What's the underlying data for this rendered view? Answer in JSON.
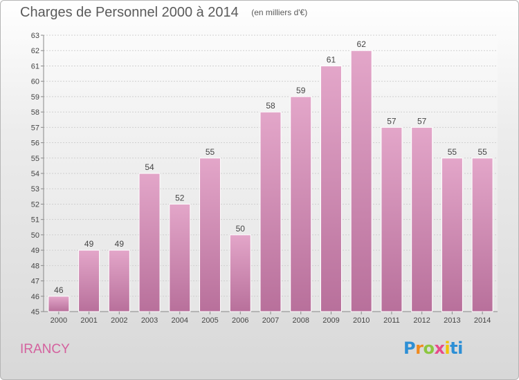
{
  "header": {
    "title": "Charges de Personnel 2000 à 2014",
    "subtitle": "(en milliers d'€)"
  },
  "commune": "IRANCY",
  "logo": {
    "letters": [
      "P",
      "r",
      "o",
      "x",
      "i",
      "ti"
    ],
    "colors": [
      "#2d8fd5",
      "#f08a1d",
      "#8cc63f",
      "#e84a8a",
      "#f2c300",
      "#2d8fd5"
    ]
  },
  "colors": {
    "bar_top": "#e3a6c9",
    "bar_bottom": "#b8709b",
    "grid": "#cfcfcf",
    "accent": "#d4619e"
  },
  "chart_data": {
    "type": "bar",
    "title": "Charges de Personnel 2000 à 2014",
    "subtitle": "(en milliers d'€)",
    "categories": [
      "2000",
      "2001",
      "2002",
      "2003",
      "2004",
      "2005",
      "2006",
      "2007",
      "2008",
      "2009",
      "2010",
      "2011",
      "2012",
      "2013",
      "2014"
    ],
    "values": [
      46,
      49,
      49,
      54,
      52,
      55,
      50,
      58,
      59,
      61,
      62,
      57,
      57,
      55,
      55
    ],
    "ylim": [
      45,
      63
    ],
    "yticks": [
      45,
      46,
      47,
      48,
      49,
      50,
      51,
      52,
      53,
      54,
      55,
      56,
      57,
      58,
      59,
      60,
      61,
      62,
      63
    ],
    "grid": true,
    "data_labels": true
  }
}
